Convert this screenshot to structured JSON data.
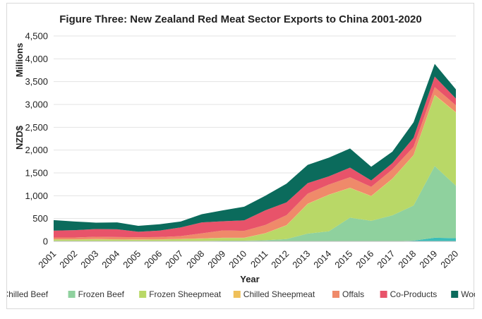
{
  "chart_data": {
    "type": "area",
    "stacked": true,
    "title": "Figure Three: New Zealand Red Meat Sector Exports to China 2001-2020",
    "xlabel": "Year",
    "ylabel": "NZD$",
    "yunit_label": "Millions",
    "ylim": [
      0,
      4500
    ],
    "yticks": [
      "0",
      "500",
      "1,000",
      "1,500",
      "2,000",
      "2,500",
      "3,000",
      "3,500",
      "4,000",
      "4,500"
    ],
    "ytick_values": [
      0,
      500,
      1000,
      1500,
      2000,
      2500,
      3000,
      3500,
      4000,
      4500
    ],
    "categories": [
      "2001",
      "2002",
      "2003",
      "2004",
      "2005",
      "2006",
      "2007",
      "2008",
      "2009",
      "2010",
      "2011",
      "2012",
      "2013",
      "2014",
      "2015",
      "2016",
      "2017",
      "2018",
      "2019",
      "2020"
    ],
    "grid": true,
    "legend_position": "bottom",
    "series": [
      {
        "name": "Chilled Beef",
        "color": "#3bbdb8",
        "values": [
          0,
          0,
          0,
          0,
          0,
          0,
          0,
          0,
          0,
          0,
          0,
          0,
          0,
          0,
          0,
          0,
          0,
          15,
          80,
          70
        ]
      },
      {
        "name": "Frozen Beef",
        "color": "#8fd19e",
        "values": [
          10,
          10,
          10,
          10,
          10,
          10,
          10,
          10,
          15,
          15,
          25,
          50,
          170,
          220,
          520,
          450,
          570,
          770,
          1570,
          1150
        ]
      },
      {
        "name": "Frozen Sheepmeat",
        "color": "#b9d867",
        "values": [
          30,
          30,
          35,
          30,
          25,
          30,
          40,
          50,
          60,
          60,
          150,
          300,
          650,
          800,
          650,
          540,
          800,
          1100,
          1550,
          1600
        ]
      },
      {
        "name": "Chilled Sheepmeat",
        "color": "#efc05a",
        "values": [
          5,
          5,
          5,
          5,
          5,
          5,
          5,
          5,
          5,
          5,
          5,
          5,
          5,
          5,
          5,
          5,
          5,
          5,
          10,
          10
        ]
      },
      {
        "name": "Offals",
        "color": "#ef8a6a",
        "values": [
          40,
          40,
          50,
          50,
          50,
          50,
          60,
          110,
          160,
          150,
          180,
          220,
          220,
          220,
          230,
          200,
          200,
          180,
          170,
          150
        ]
      },
      {
        "name": "Co-Products",
        "color": "#e8536a",
        "values": [
          150,
          160,
          170,
          170,
          120,
          140,
          190,
          240,
          200,
          230,
          320,
          280,
          230,
          180,
          210,
          140,
          140,
          200,
          230,
          150
        ]
      },
      {
        "name": "Wool",
        "color": "#0b6b5c",
        "values": [
          230,
          190,
          140,
          150,
          130,
          140,
          130,
          180,
          240,
          300,
          320,
          410,
          400,
          410,
          420,
          300,
          250,
          340,
          280,
          200
        ]
      }
    ]
  }
}
